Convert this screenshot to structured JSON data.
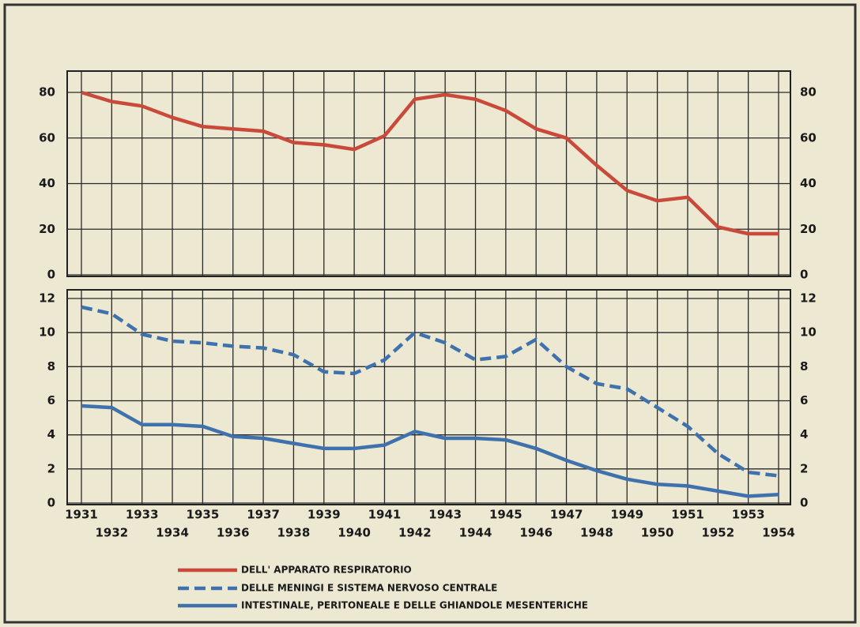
{
  "chart_data": [
    {
      "type": "line",
      "x": [
        1931,
        1932,
        1933,
        1934,
        1935,
        1936,
        1937,
        1938,
        1939,
        1940,
        1941,
        1942,
        1943,
        1944,
        1945,
        1946,
        1947,
        1948,
        1949,
        1950,
        1951,
        1952,
        1953,
        1954
      ],
      "xlim": [
        1931,
        1954
      ],
      "ylim": [
        0,
        80
      ],
      "yticks": [
        0,
        20,
        40,
        60,
        80
      ],
      "grid": true,
      "series": [
        {
          "name": "DELL' APPARATO RESPIRATORIO",
          "color": "#c94a3a",
          "dash": false,
          "values": [
            80,
            76,
            74,
            69,
            65,
            64,
            63,
            58,
            57,
            55,
            61,
            77,
            79,
            77,
            72,
            64,
            60,
            48,
            37,
            32.5,
            34,
            21,
            18,
            18
          ]
        }
      ]
    },
    {
      "type": "line",
      "x": [
        1931,
        1932,
        1933,
        1934,
        1935,
        1936,
        1937,
        1938,
        1939,
        1940,
        1941,
        1942,
        1943,
        1944,
        1945,
        1946,
        1947,
        1948,
        1949,
        1950,
        1951,
        1952,
        1953,
        1954
      ],
      "xlim": [
        1931,
        1954
      ],
      "ylim": [
        0,
        12
      ],
      "yticks": [
        0,
        2,
        4,
        6,
        8,
        10,
        12
      ],
      "grid": true,
      "series": [
        {
          "name": "DELLE MENINGI E SISTEMA NERVOSO CENTRALE",
          "color": "#3f72ad",
          "dash": true,
          "values": [
            11.5,
            11.1,
            9.9,
            9.5,
            9.4,
            9.2,
            9.1,
            8.7,
            7.7,
            7.6,
            8.4,
            10,
            9.4,
            8.4,
            8.6,
            9.6,
            8,
            7,
            6.7,
            5.6,
            4.5,
            2.9,
            1.8,
            1.6
          ]
        },
        {
          "name": "INTESTINALE, PERITONEALE E DELLE GHIANDOLE MESENTERICHE",
          "color": "#3f72ad",
          "dash": false,
          "values": [
            5.7,
            5.6,
            4.6,
            4.6,
            4.5,
            3.9,
            3.8,
            3.5,
            3.2,
            3.2,
            3.4,
            4.2,
            3.8,
            3.8,
            3.7,
            3.2,
            2.5,
            1.9,
            1.4,
            1.1,
            1,
            0.7,
            0.4,
            0.5
          ]
        }
      ]
    }
  ]
}
